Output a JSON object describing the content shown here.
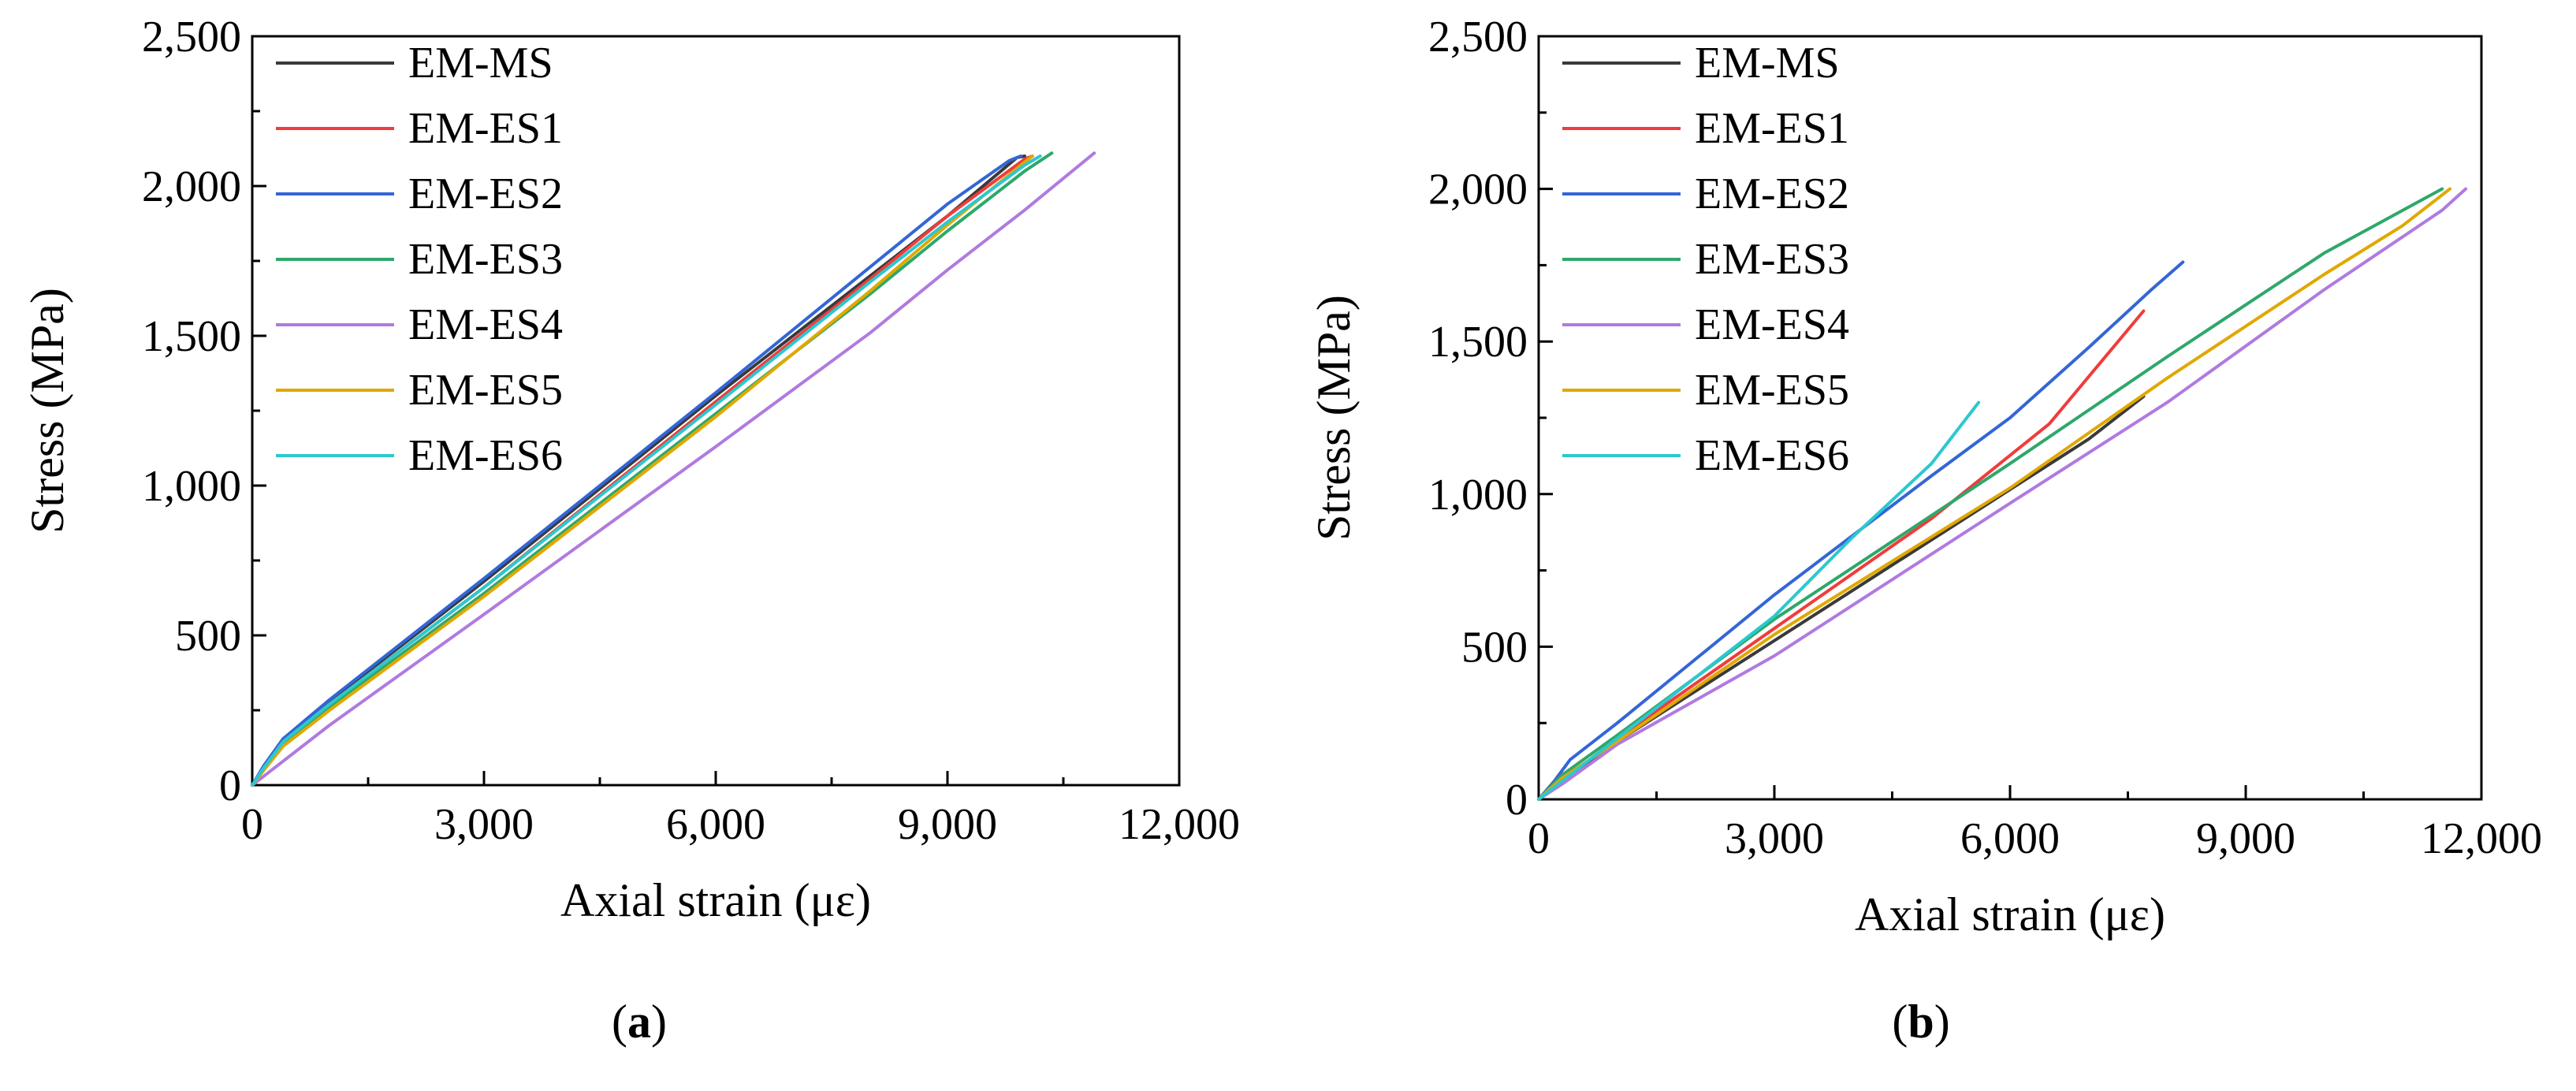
{
  "figure": {
    "captions": [
      {
        "open": "(",
        "letter": "a",
        "close": ")"
      },
      {
        "open": "(",
        "letter": "b",
        "close": ")"
      }
    ]
  },
  "chart_data": [
    {
      "type": "line",
      "panel": "a",
      "xlabel": "Axial strain (με)",
      "ylabel": "Stress (MPa)",
      "xlim": [
        0,
        12000
      ],
      "ylim": [
        0,
        2500
      ],
      "xticks": [
        0,
        3000,
        6000,
        9000,
        12000
      ],
      "xtick_labels": [
        "0",
        "3,000",
        "6,000",
        "9,000",
        "12,000"
      ],
      "yticks": [
        0,
        500,
        1000,
        1500,
        2000,
        2500
      ],
      "ytick_labels": [
        "0",
        "500",
        "1,000",
        "1,500",
        "2,000",
        "2,500"
      ],
      "grid": false,
      "legend_position": "top-left",
      "series": [
        {
          "name": "EM-MS",
          "color": "#3a3a3a",
          "x": [
            0,
            150,
            400,
            1000,
            3000,
            6000,
            8000,
            9000,
            9900,
            10000
          ],
          "y": [
            0,
            60,
            150,
            280,
            680,
            1300,
            1700,
            1900,
            2095,
            2100
          ]
        },
        {
          "name": "EM-ES1",
          "color": "#f03c3c",
          "x": [
            0,
            150,
            400,
            1000,
            3000,
            6000,
            8000,
            9000,
            10000,
            10100
          ],
          "y": [
            0,
            60,
            150,
            270,
            660,
            1280,
            1690,
            1900,
            2090,
            2100
          ]
        },
        {
          "name": "EM-ES2",
          "color": "#3366d6",
          "x": [
            0,
            150,
            400,
            1000,
            3000,
            6000,
            8000,
            9000,
            9800,
            9950
          ],
          "y": [
            0,
            65,
            155,
            285,
            690,
            1310,
            1730,
            1940,
            2085,
            2100
          ]
        },
        {
          "name": "EM-ES3",
          "color": "#2ea86a",
          "x": [
            0,
            150,
            400,
            1000,
            3000,
            6000,
            8000,
            9000,
            10000,
            10350
          ],
          "y": [
            0,
            55,
            140,
            260,
            640,
            1240,
            1640,
            1850,
            2050,
            2110
          ]
        },
        {
          "name": "EM-ES4",
          "color": "#b07ae0",
          "x": [
            0,
            200,
            500,
            1000,
            3000,
            6000,
            8000,
            9000,
            10000,
            10900
          ],
          "y": [
            0,
            40,
            100,
            200,
            570,
            1130,
            1510,
            1720,
            1920,
            2110
          ]
        },
        {
          "name": "EM-ES5",
          "color": "#e0a800",
          "x": [
            0,
            150,
            400,
            1000,
            3000,
            6000,
            8000,
            9000,
            10000,
            10100
          ],
          "y": [
            0,
            50,
            130,
            250,
            630,
            1230,
            1650,
            1870,
            2080,
            2100
          ]
        },
        {
          "name": "EM-ES6",
          "color": "#2cc8cf",
          "x": [
            0,
            150,
            400,
            1000,
            3000,
            6000,
            8000,
            9000,
            10000,
            10200
          ],
          "y": [
            0,
            58,
            145,
            270,
            660,
            1270,
            1680,
            1880,
            2070,
            2100
          ]
        }
      ]
    },
    {
      "type": "line",
      "panel": "b",
      "xlabel": "Axial strain (με)",
      "ylabel": "Stress (MPa)",
      "xlim": [
        0,
        12000
      ],
      "ylim": [
        0,
        2500
      ],
      "xticks": [
        0,
        3000,
        6000,
        9000,
        12000
      ],
      "xtick_labels": [
        "0",
        "3,000",
        "6,000",
        "9,000",
        "12,000"
      ],
      "yticks": [
        0,
        500,
        1000,
        1500,
        2000,
        2500
      ],
      "ytick_labels": [
        "0",
        "500",
        "1,000",
        "1,500",
        "2,000",
        "2,500"
      ],
      "grid": false,
      "legend_position": "top-left",
      "series": [
        {
          "name": "EM-MS",
          "color": "#3a3a3a",
          "x": [
            0,
            300,
            1000,
            3000,
            5000,
            7000,
            7700
          ],
          "y": [
            0,
            60,
            190,
            520,
            850,
            1180,
            1320
          ]
        },
        {
          "name": "EM-ES1",
          "color": "#f03c3c",
          "x": [
            0,
            300,
            1000,
            3000,
            5000,
            6500,
            7700
          ],
          "y": [
            0,
            60,
            200,
            560,
            920,
            1230,
            1600
          ]
        },
        {
          "name": "EM-ES2",
          "color": "#3366d6",
          "x": [
            0,
            200,
            400,
            1000,
            3000,
            5000,
            6000,
            7000,
            7800,
            8200
          ],
          "y": [
            0,
            60,
            130,
            250,
            670,
            1060,
            1250,
            1480,
            1670,
            1760
          ]
        },
        {
          "name": "EM-ES3",
          "color": "#2ea86a",
          "x": [
            0,
            300,
            1000,
            3000,
            6000,
            8000,
            9000,
            10000,
            11000,
            11500
          ],
          "y": [
            0,
            80,
            210,
            590,
            1100,
            1450,
            1620,
            1790,
            1930,
            2000
          ]
        },
        {
          "name": "EM-ES4",
          "color": "#b07ae0",
          "x": [
            0,
            300,
            1000,
            3000,
            3300,
            6000,
            8000,
            10000,
            11500,
            11800
          ],
          "y": [
            0,
            50,
            180,
            470,
            520,
            970,
            1300,
            1670,
            1930,
            2000
          ]
        },
        {
          "name": "EM-ES5",
          "color": "#e0a800",
          "x": [
            0,
            300,
            1000,
            3000,
            6000,
            8000,
            10000,
            11000,
            11600
          ],
          "y": [
            0,
            70,
            190,
            540,
            1020,
            1380,
            1720,
            1880,
            2000
          ]
        },
        {
          "name": "EM-ES6",
          "color": "#2cc8cf",
          "x": [
            0,
            300,
            1000,
            3000,
            4000,
            5000,
            5600
          ],
          "y": [
            0,
            60,
            200,
            600,
            860,
            1100,
            1300
          ]
        }
      ]
    }
  ]
}
